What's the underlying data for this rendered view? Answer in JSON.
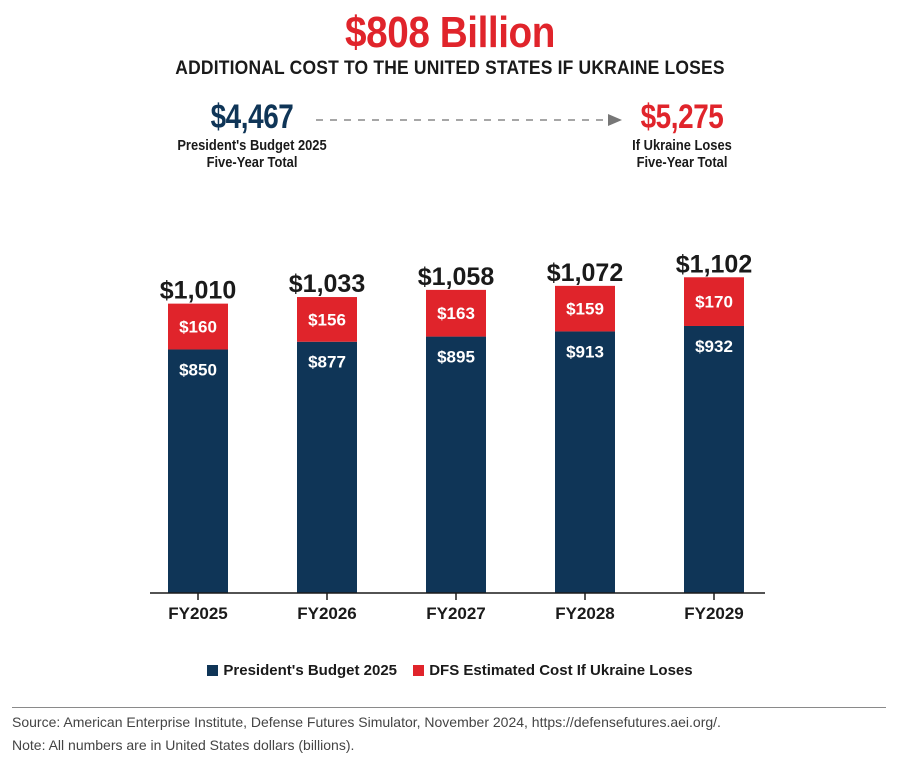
{
  "header": {
    "headline": "$808 Billion",
    "subtitle": "ADDITIONAL COST TO THE UNITED STATES IF UKRAINE LOSES"
  },
  "totals": {
    "left": {
      "value": "$4,467",
      "line1": "President's Budget 2025",
      "line2": "Five-Year Total"
    },
    "right": {
      "value": "$5,275",
      "line1": "If Ukraine Loses",
      "line2": "Five-Year Total"
    }
  },
  "colors": {
    "navy": "#0f3557",
    "red": "#e0242b",
    "axis": "#1a1a1a",
    "arrow": "#888888"
  },
  "chart_data": {
    "type": "bar",
    "stacked": true,
    "title": "$808 Billion",
    "subtitle": "ADDITIONAL COST TO THE UNITED STATES IF UKRAINE LOSES",
    "categories": [
      "FY2025",
      "FY2026",
      "FY2027",
      "FY2028",
      "FY2029"
    ],
    "series": [
      {
        "name": "President's Budget 2025",
        "color": "#0f3557",
        "values": [
          850,
          877,
          895,
          913,
          932
        ],
        "labels": [
          "$850",
          "$877",
          "$895",
          "$913",
          "$932"
        ]
      },
      {
        "name": "DFS Estimated Cost If Ukraine Loses",
        "color": "#e0242b",
        "values": [
          160,
          156,
          163,
          159,
          170
        ],
        "labels": [
          "$160",
          "$156",
          "$163",
          "$159",
          "$170"
        ]
      }
    ],
    "totals": [
      1010,
      1033,
      1058,
      1072,
      1102
    ],
    "total_labels": [
      "$1,010",
      "$1,033",
      "$1,058",
      "$1,072",
      "$1,102"
    ],
    "xlabel": "",
    "ylabel": "",
    "ylim": [
      0,
      1102
    ],
    "grid": false,
    "legend": "bottom"
  },
  "footer": {
    "source": "Source: American Enterprise Institute, Defense Futures Simulator, November 2024, https://defensefutures.aei.org/.",
    "note": "Note: All numbers are in United States dollars (billions)."
  }
}
